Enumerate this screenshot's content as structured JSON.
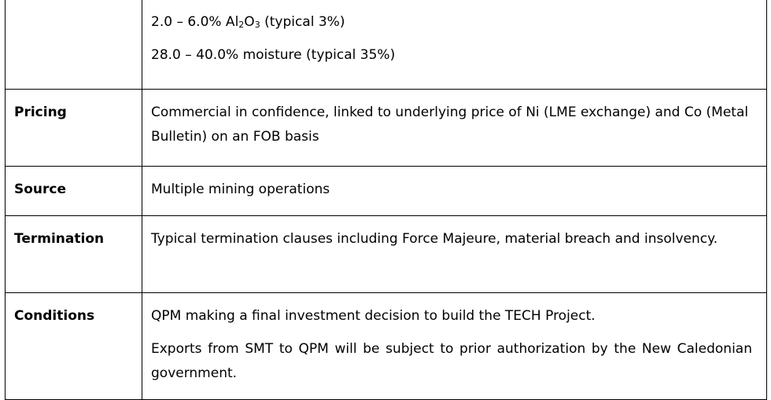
{
  "rows": {
    "composition": {
      "label": "",
      "alumina": {
        "prefix": "2.0 – 6.0% Al",
        "sub1": "2",
        "mid": "O",
        "sub2": "3",
        "suffix": " (typical 3%)"
      },
      "moisture": "28.0 – 40.0% moisture (typical 35%)"
    },
    "pricing": {
      "label": "Pricing",
      "text": "Commercial in confidence, linked to underlying price of Ni (LME exchange) and Co (Metal Bulletin) on an FOB basis"
    },
    "source": {
      "label": "Source",
      "text": "Multiple mining operations"
    },
    "termination": {
      "label": "Termination",
      "text": "Typical termination clauses including Force Majeure, material breach and insolvency."
    },
    "conditions": {
      "label": "Conditions",
      "para1": "QPM making a final investment decision to build the TECH Project.",
      "para2": "Exports from SMT to QPM will be subject to prior authorization by the New Caledonian government."
    }
  }
}
